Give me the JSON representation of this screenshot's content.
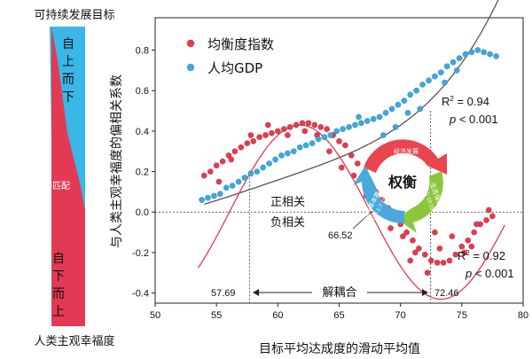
{
  "left_panel": {
    "top_label": "可持续发展目标",
    "bottom_label": "人类主观幸福度",
    "top_arrow_text": "自上而下",
    "bottom_arrow_text": "自下而上",
    "mismatch_label": "不匹配",
    "colors": {
      "blue": "#3ab7e6",
      "red": "#e23a55"
    }
  },
  "chart_data": {
    "type": "scatter",
    "xlabel": "目标平均达成度的滑动平均值",
    "ylabel": "与人类主观幸福度的偏相关系数",
    "xlim": [
      50,
      80
    ],
    "ylim": [
      -0.45,
      0.96
    ],
    "xticks": [
      "50",
      "55",
      "60",
      "65",
      "70",
      "75",
      "80"
    ],
    "yticks": [
      "-0.4",
      "-0.2",
      "0.0",
      "0.2",
      "0.4",
      "0.6",
      "0.8"
    ],
    "legend_position": "top-left",
    "series": [
      {
        "name": "均衡度指数",
        "color": "#e53a50",
        "points": [
          [
            54.0,
            0.18
          ],
          [
            54.5,
            0.2
          ],
          [
            55.0,
            0.23
          ],
          [
            55.5,
            0.25
          ],
          [
            56.0,
            0.28
          ],
          [
            56.5,
            0.3
          ],
          [
            57.0,
            0.32
          ],
          [
            57.5,
            0.34
          ],
          [
            58.0,
            0.35
          ],
          [
            58.5,
            0.37
          ],
          [
            59.0,
            0.38
          ],
          [
            59.5,
            0.39
          ],
          [
            60.0,
            0.4
          ],
          [
            60.5,
            0.41
          ],
          [
            61.0,
            0.42
          ],
          [
            61.5,
            0.43
          ],
          [
            62.0,
            0.44
          ],
          [
            62.5,
            0.44
          ],
          [
            63.0,
            0.43
          ],
          [
            63.5,
            0.42
          ],
          [
            64.0,
            0.41
          ],
          [
            64.5,
            0.38
          ],
          [
            65.0,
            0.35
          ],
          [
            65.5,
            0.33
          ],
          [
            66.0,
            0.28
          ],
          [
            66.5,
            0.24
          ],
          [
            67.0,
            0.18
          ],
          [
            67.5,
            0.14
          ],
          [
            68.0,
            0.1
          ],
          [
            68.5,
            0.06
          ],
          [
            69.0,
            0.02
          ],
          [
            69.5,
            -0.02
          ],
          [
            70.0,
            -0.06
          ],
          [
            70.5,
            -0.1
          ],
          [
            71.0,
            -0.14
          ],
          [
            71.5,
            -0.18
          ],
          [
            72.0,
            -0.21
          ],
          [
            72.5,
            -0.24
          ],
          [
            73.0,
            -0.25
          ],
          [
            73.5,
            -0.25
          ],
          [
            74.0,
            -0.24
          ],
          [
            74.5,
            -0.21
          ],
          [
            75.0,
            -0.17
          ],
          [
            75.5,
            -0.14
          ],
          [
            76.0,
            -0.1
          ],
          [
            76.5,
            -0.06
          ],
          [
            77.0,
            -0.04
          ],
          [
            77.5,
            -0.02
          ],
          [
            55.2,
            0.15
          ],
          [
            56.2,
            0.26
          ],
          [
            57.8,
            0.38
          ],
          [
            59.2,
            0.43
          ],
          [
            60.8,
            0.38
          ],
          [
            62.2,
            0.4
          ],
          [
            63.2,
            0.38
          ],
          [
            64.2,
            0.3
          ],
          [
            65.2,
            0.22
          ],
          [
            66.2,
            0.18
          ],
          [
            67.2,
            0.08
          ],
          [
            68.2,
            0.0
          ],
          [
            69.2,
            -0.08
          ],
          [
            70.2,
            -0.12
          ],
          [
            71.2,
            -0.2
          ],
          [
            72.2,
            -0.3
          ],
          [
            73.2,
            -0.18
          ],
          [
            74.2,
            -0.12
          ],
          [
            75.2,
            -0.2
          ],
          [
            76.2,
            -0.06
          ],
          [
            70.8,
            -0.24
          ],
          [
            72.8,
            -0.1
          ],
          [
            75.8,
            -0.17
          ],
          [
            77.2,
            0.01
          ]
        ]
      },
      {
        "name": "人均GDP",
        "color": "#3aa9e0",
        "points": [
          [
            53.8,
            0.06
          ],
          [
            54.3,
            0.07
          ],
          [
            54.8,
            0.08
          ],
          [
            55.3,
            0.09
          ],
          [
            55.8,
            0.12
          ],
          [
            56.3,
            0.13
          ],
          [
            56.8,
            0.15
          ],
          [
            57.3,
            0.17
          ],
          [
            57.8,
            0.19
          ],
          [
            58.3,
            0.2
          ],
          [
            58.8,
            0.22
          ],
          [
            59.3,
            0.24
          ],
          [
            59.8,
            0.26
          ],
          [
            60.3,
            0.28
          ],
          [
            60.8,
            0.29
          ],
          [
            61.3,
            0.3
          ],
          [
            61.8,
            0.32
          ],
          [
            62.3,
            0.33
          ],
          [
            62.8,
            0.34
          ],
          [
            63.3,
            0.36
          ],
          [
            63.8,
            0.37
          ],
          [
            64.3,
            0.38
          ],
          [
            64.8,
            0.4
          ],
          [
            65.3,
            0.41
          ],
          [
            65.8,
            0.42
          ],
          [
            66.3,
            0.43
          ],
          [
            66.8,
            0.44
          ],
          [
            67.3,
            0.45
          ],
          [
            67.8,
            0.46
          ],
          [
            68.3,
            0.47
          ],
          [
            68.8,
            0.49
          ],
          [
            69.3,
            0.51
          ],
          [
            69.8,
            0.53
          ],
          [
            70.3,
            0.55
          ],
          [
            70.8,
            0.58
          ],
          [
            71.3,
            0.6
          ],
          [
            71.8,
            0.63
          ],
          [
            72.3,
            0.65
          ],
          [
            72.8,
            0.67
          ],
          [
            73.3,
            0.69
          ],
          [
            73.8,
            0.72
          ],
          [
            74.3,
            0.74
          ],
          [
            74.8,
            0.76
          ],
          [
            75.3,
            0.78
          ],
          [
            75.8,
            0.79
          ],
          [
            76.3,
            0.8
          ],
          [
            76.8,
            0.79
          ],
          [
            77.3,
            0.78
          ],
          [
            77.8,
            0.77
          ],
          [
            66.6,
            0.47
          ],
          [
            68.6,
            0.38
          ],
          [
            69.6,
            0.42
          ],
          [
            70.6,
            0.49
          ],
          [
            71.6,
            0.51
          ],
          [
            73.6,
            0.64
          ],
          [
            74.6,
            0.7
          ]
        ]
      }
    ],
    "annotations": {
      "positive_label": "正相关",
      "negative_label": "负相关",
      "peak_value": "66.52",
      "left_bound": "57.69",
      "right_bound": "72.46",
      "decoupling_label": "解耦合",
      "gdp_r2_label": "R",
      "gdp_r2_value": " = 0.94",
      "gdp_p_label": "p",
      "gdp_p_value": " < 0.001",
      "bal_r2_label": "R",
      "bal_r2_value": " = 0.92",
      "bal_p_label": "p",
      "bal_p_value": " < 0.001",
      "superscript": "2"
    },
    "cycle": {
      "center_label": "权衡",
      "top_label": "经济发展",
      "top_sdg": "SDG 8 9",
      "right_label": "生态保护",
      "right_sdg": "SDG 13-15",
      "left_label": "人类基本需求",
      "left_sdg": "SDG 1-7 10 11",
      "colors": {
        "top": "#e8454f",
        "right": "#8cc63f",
        "left": "#4aa8dc"
      }
    }
  }
}
